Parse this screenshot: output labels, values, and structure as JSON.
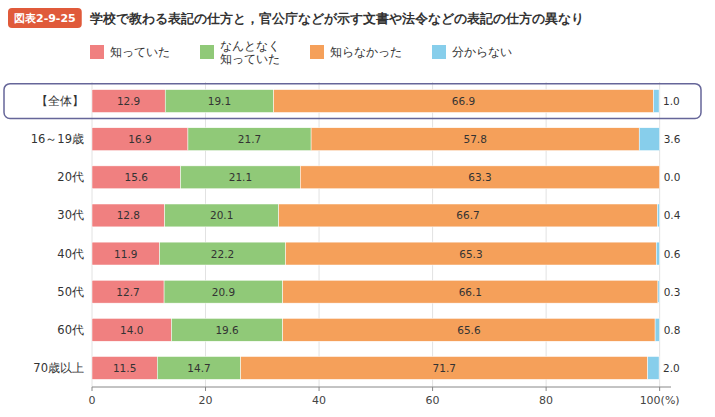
{
  "chart_data": {
    "type": "bar",
    "orientation": "horizontal",
    "stacked": true,
    "data_labels": true,
    "grid": true,
    "legend": "top",
    "title": "学校で教わる表記の仕方と，官公庁などが示す文書や法令などの表記の仕方の異なり",
    "subtitle": "図表2-9-25",
    "categories": [
      "【全体】",
      "16～19歳",
      "20代",
      "30代",
      "40代",
      "50代",
      "60代",
      "70歳以上"
    ],
    "series": [
      {
        "name": "知っていた",
        "color": "#F08080",
        "values": [
          12.9,
          16.9,
          15.6,
          12.8,
          11.9,
          12.7,
          14.0,
          11.5
        ],
        "value_labels": [
          "12.9",
          "16.9",
          "15.6",
          "12.8",
          "11.9",
          "12.7",
          "14.0",
          "11.5"
        ]
      },
      {
        "name": "なんとなく\n知っていた",
        "color": "#90C978",
        "values": [
          19.1,
          21.7,
          21.1,
          20.1,
          22.2,
          20.9,
          19.6,
          14.7
        ]
      },
      {
        "name": "知らなかった",
        "color": "#F5A05A",
        "values": [
          66.9,
          57.8,
          63.3,
          66.7,
          65.3,
          66.1,
          65.6,
          71.7
        ]
      },
      {
        "name": "分からない",
        "color": "#87CEEB",
        "values": [
          1.0,
          3.6,
          0.0,
          0.4,
          0.6,
          0.3,
          0.8,
          2.0
        ],
        "value_labels": [
          "1.0",
          "3.6",
          "0.0",
          "0.4",
          "0.6",
          "0.3",
          "0.8",
          "2.0"
        ]
      }
    ],
    "xlim": [
      0,
      102
    ],
    "xticks": [
      0,
      20,
      40,
      60,
      80,
      {
        "value": 100,
        "label": "100(%)"
      }
    ]
  }
}
